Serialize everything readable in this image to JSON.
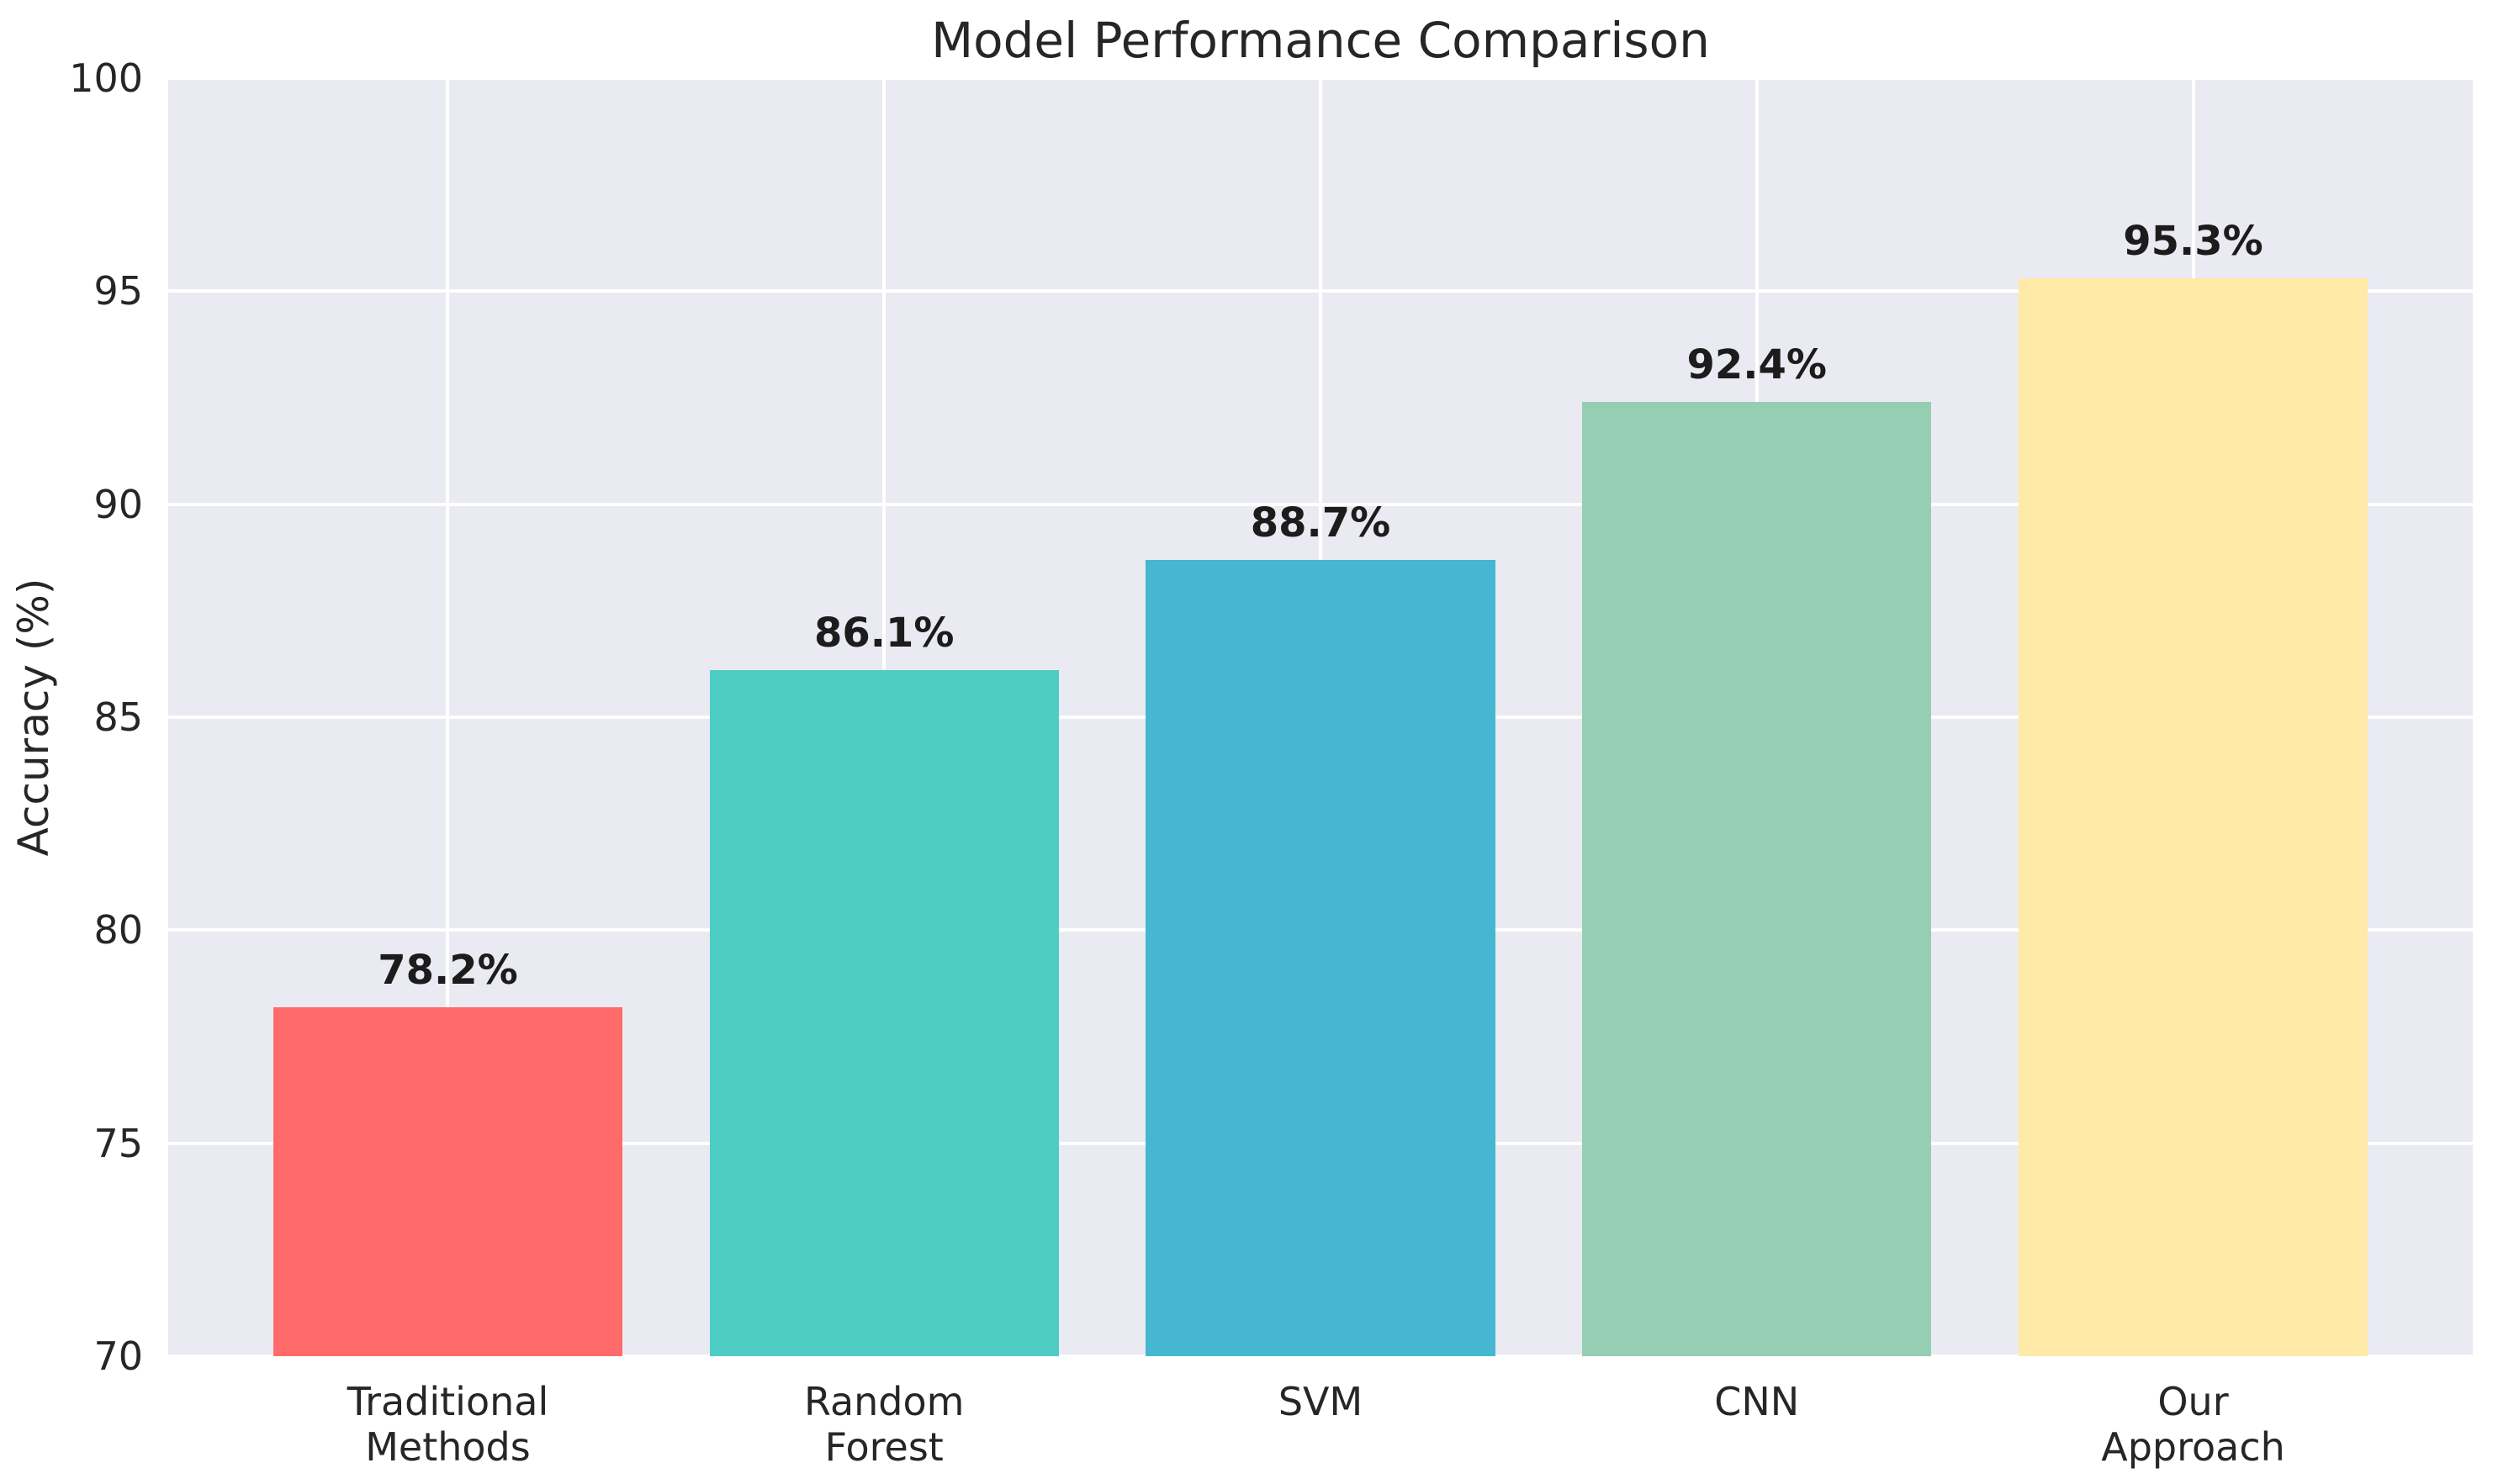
{
  "title": "Model Performance Comparison",
  "chart_data": {
    "type": "bar",
    "title": "Model Performance Comparison",
    "xlabel": "",
    "ylabel": "Accuracy (%)",
    "categories": [
      "Traditional\nMethods",
      "Random\nForest",
      "SVM",
      "CNN",
      "Our\nApproach"
    ],
    "values": [
      78.2,
      86.1,
      88.7,
      92.4,
      95.3
    ],
    "value_labels": [
      "78.2%",
      "86.1%",
      "88.7%",
      "92.4%",
      "95.3%"
    ],
    "bar_colors": [
      "#FF6B6B",
      "#4ECDC4",
      "#45B7D1",
      "#96CEB4",
      "#FFEAA7"
    ],
    "ylim": [
      70,
      100
    ],
    "yticks": [
      "70",
      "75",
      "80",
      "85",
      "90",
      "95",
      "100"
    ],
    "grid": "on",
    "legend_position": "none",
    "plot_background": "#EAEAF2",
    "grid_color": "#FFFFFF",
    "text_color": "#262626"
  }
}
